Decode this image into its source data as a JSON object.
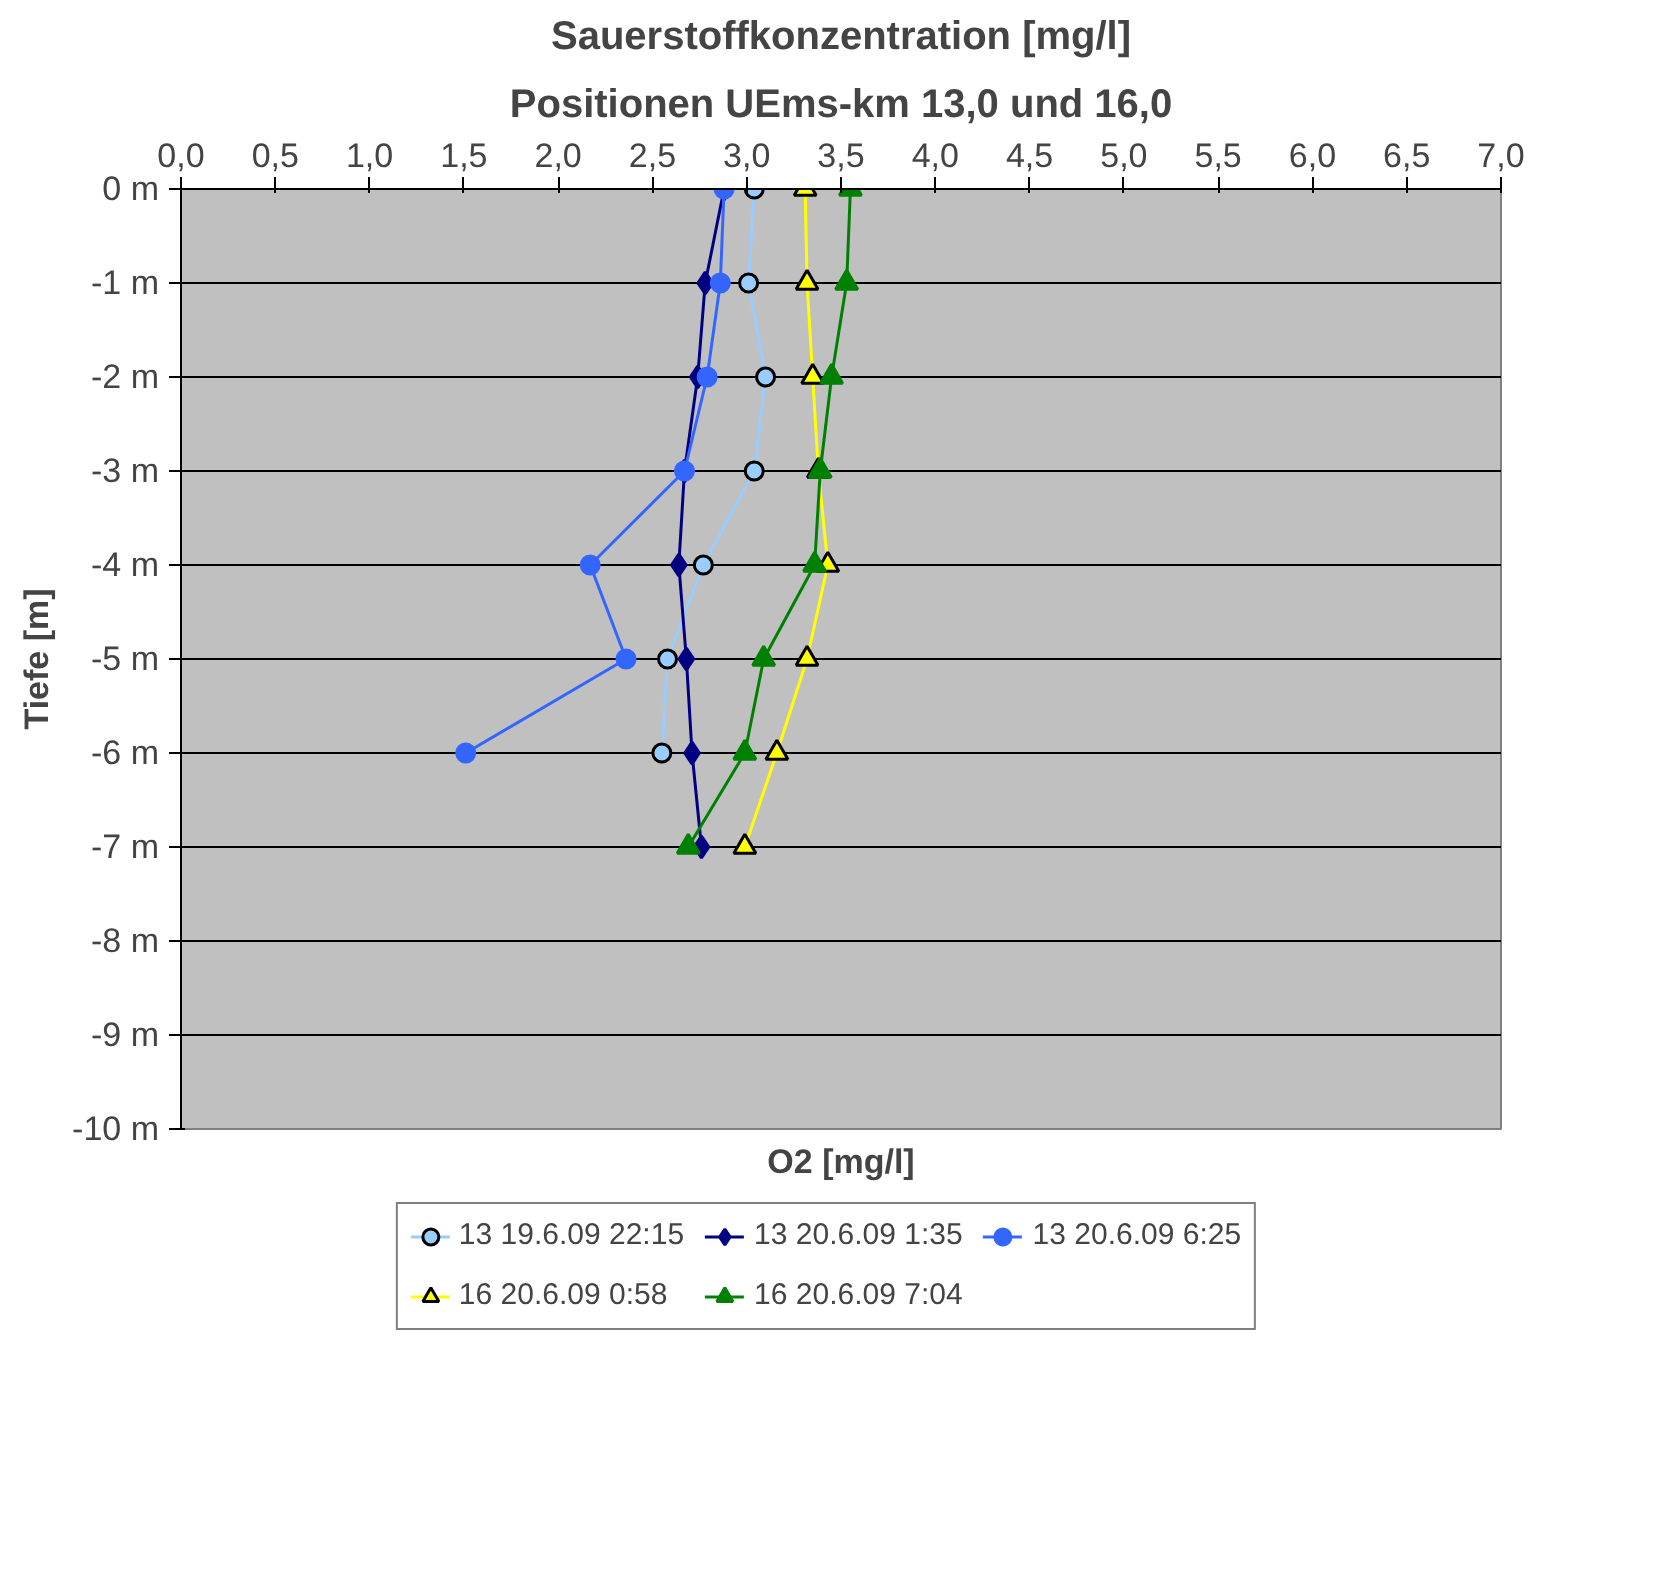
{
  "chart_data": {
    "type": "line",
    "title": "Sauerstoffkonzentration [mg/l]",
    "subtitle": "Positionen UEms-km 13,0 und 16,0",
    "xlabel": "O2 [mg/l]",
    "ylabel": "Tiefe [m]",
    "xlim": [
      0,
      7
    ],
    "xticks": [
      {
        "value": 0,
        "label": "0,0"
      },
      {
        "value": 0.5,
        "label": "0,5"
      },
      {
        "value": 1,
        "label": "1,0"
      },
      {
        "value": 1.5,
        "label": "1,5"
      },
      {
        "value": 2,
        "label": "2,0"
      },
      {
        "value": 2.5,
        "label": "2,5"
      },
      {
        "value": 3,
        "label": "3,0"
      },
      {
        "value": 3.5,
        "label": "3,5"
      },
      {
        "value": 4,
        "label": "4,0"
      },
      {
        "value": 4.5,
        "label": "4,5"
      },
      {
        "value": 5,
        "label": "5,0"
      },
      {
        "value": 5.5,
        "label": "5,5"
      },
      {
        "value": 6,
        "label": "6,0"
      },
      {
        "value": 6.5,
        "label": "6,5"
      },
      {
        "value": 7,
        "label": "7,0"
      }
    ],
    "ylim": [
      -10,
      0
    ],
    "yticks": [
      {
        "value": 0,
        "label": "0 m"
      },
      {
        "value": -1,
        "label": "-1 m"
      },
      {
        "value": -2,
        "label": "-2 m"
      },
      {
        "value": -3,
        "label": "-3 m"
      },
      {
        "value": -4,
        "label": "-4 m"
      },
      {
        "value": -5,
        "label": "-5 m"
      },
      {
        "value": -6,
        "label": "-6 m"
      },
      {
        "value": -7,
        "label": "-7 m"
      },
      {
        "value": -8,
        "label": "-8 m"
      },
      {
        "value": -9,
        "label": "-9 m"
      },
      {
        "value": -10,
        "label": "-10 m"
      }
    ],
    "grid": "y",
    "legend": "bottom",
    "series": [
      {
        "name": "13 19.6.09 22:15",
        "color": "#99ccff",
        "marker": "circle",
        "x": [
          3.04,
          3.01,
          3.1,
          3.04,
          2.77,
          2.58,
          2.55
        ],
        "values": [
          0,
          -1,
          -2,
          -3,
          -4,
          -5,
          -6
        ]
      },
      {
        "name": "13 20.6.09 1:35",
        "color": "#000080",
        "marker": "diamond",
        "x": [
          2.88,
          2.78,
          2.74,
          2.67,
          2.64,
          2.68,
          2.71,
          2.76
        ],
        "values": [
          0,
          -1,
          -2,
          -3,
          -4,
          -5,
          -6,
          -7
        ]
      },
      {
        "name": "13 20.6.09 6:25",
        "color": "#3366ff",
        "marker": "circle",
        "x": [
          2.88,
          2.86,
          2.79,
          2.67,
          2.17,
          2.36,
          1.51
        ],
        "values": [
          0,
          -1,
          -2,
          -3,
          -4,
          -5,
          -6
        ]
      },
      {
        "name": "16 20.6.09 0:58",
        "color": "#ffff00",
        "marker": "triangle",
        "x": [
          3.31,
          3.32,
          3.35,
          3.38,
          3.43,
          3.32,
          3.16,
          2.99
        ],
        "values": [
          0,
          -1,
          -2,
          -3,
          -4,
          -5,
          -6,
          -7
        ]
      },
      {
        "name": "16 20.6.09 7:04",
        "color": "#008000",
        "marker": "triangle",
        "x": [
          3.55,
          3.53,
          3.45,
          3.39,
          3.36,
          3.09,
          2.99,
          2.69
        ],
        "values": [
          0,
          -1,
          -2,
          -3,
          -4,
          -5,
          -6,
          -7
        ]
      }
    ]
  }
}
